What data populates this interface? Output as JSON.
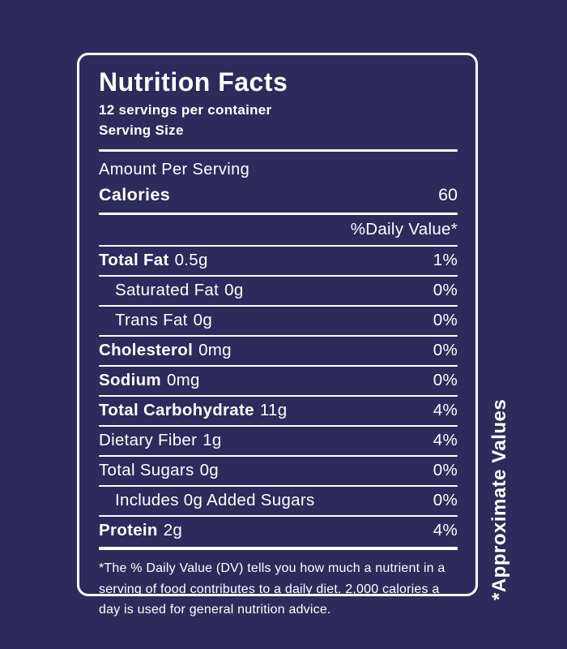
{
  "label": {
    "title": "Nutrition Facts",
    "servings_per_container": "12 servings per container",
    "serving_size": "Serving Size",
    "amount_per_serving": "Amount Per Serving",
    "calories_label": "Calories",
    "calories_value": "60",
    "daily_value_header": "%Daily Value*",
    "rows": [
      {
        "name": "Total Fat",
        "amount": "0.5g",
        "dv": "1%"
      },
      {
        "name": "Saturated Fat",
        "amount": "0g",
        "dv": "0%"
      },
      {
        "name": "Trans Fat",
        "amount": "0g",
        "dv": "0%"
      },
      {
        "name": "Cholesterol",
        "amount": "0mg",
        "dv": "0%"
      },
      {
        "name": "Sodium",
        "amount": "0mg",
        "dv": "0%"
      },
      {
        "name": "Total Carbohydrate",
        "amount": "11g",
        "dv": "4%"
      },
      {
        "name": "Dietary Fiber",
        "amount": "1g",
        "dv": "4%"
      },
      {
        "name": "Total Sugars",
        "amount": "0g",
        "dv": "0%"
      },
      {
        "name": "Includes 0g Added Sugars",
        "amount": "",
        "dv": "0%"
      },
      {
        "name": "Protein",
        "amount": "2g",
        "dv": "4%"
      }
    ],
    "footnote": "*The % Daily Value (DV) tells you how much a nutrient in a serving of food contributes to a daily diet. 2,000 calories a day is used for general nutrition advice.",
    "side_note": "*Approximate Values"
  },
  "colors": {
    "background": "#2b2b5c",
    "text": "#ffffff"
  }
}
